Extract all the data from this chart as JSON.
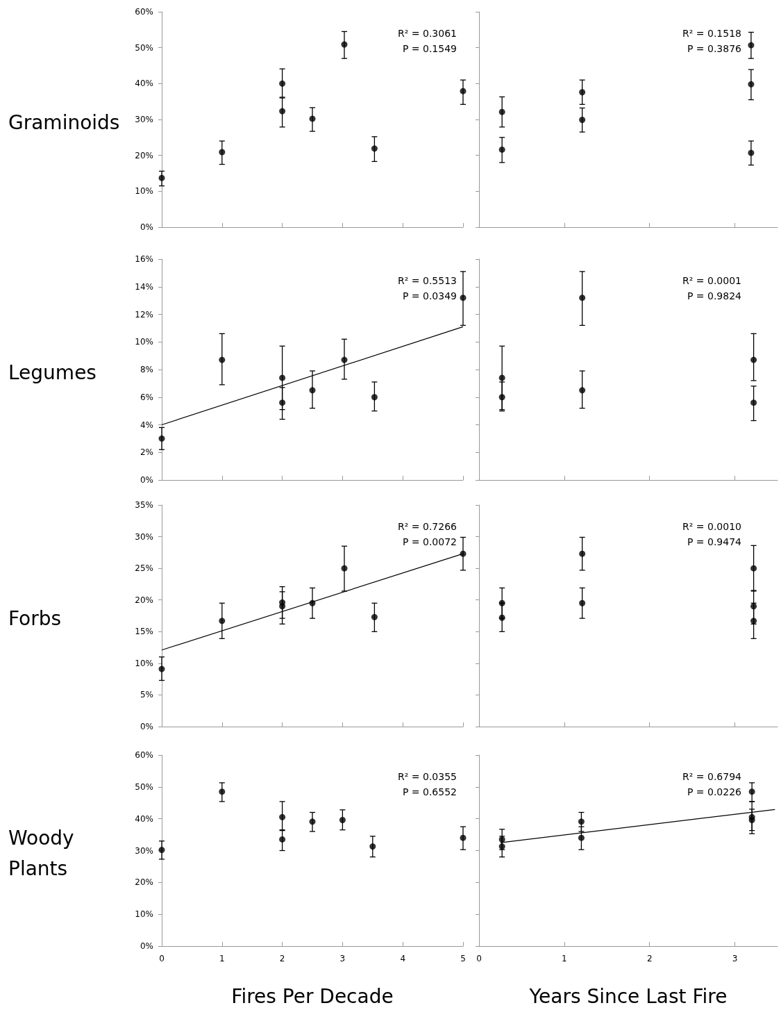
{
  "chart_data": [
    {
      "type": "scatter",
      "ylabel": "Graminoids",
      "annotations": [
        "R² = 0.3061",
        "P = 0.1549"
      ],
      "xlim": [
        0,
        5
      ],
      "xticks": [
        0,
        1,
        2,
        3,
        4,
        5
      ],
      "ylim": [
        0,
        60
      ],
      "yticks": [
        {
          "value": 0,
          "label": "0%"
        },
        {
          "value": 10,
          "label": "10%"
        },
        {
          "value": 20,
          "label": "20%"
        },
        {
          "value": 30,
          "label": "30%"
        },
        {
          "value": 40,
          "label": "40%"
        },
        {
          "value": 50,
          "label": "50%"
        },
        {
          "value": 60,
          "label": "60%"
        }
      ],
      "tick_labels": "y",
      "grid": false,
      "marker": "circle",
      "series": [
        {
          "color": "#000000",
          "x": [
            0,
            1,
            2,
            2,
            2.5,
            3.03,
            3.53,
            5
          ],
          "values": [
            13.7,
            20.9,
            40,
            32.3,
            30.2,
            50.9,
            21.9,
            37.9
          ],
          "errors": [
            [
              11.5,
              15.6
            ],
            [
              17.5,
              24
            ],
            [
              36.2,
              44.1
            ],
            [
              27.9,
              36
            ],
            [
              26.7,
              33.3
            ],
            [
              47,
              54.5
            ],
            [
              18.3,
              25.2
            ],
            [
              34.2,
              41
            ]
          ]
        }
      ]
    },
    {
      "type": "scatter",
      "annotations": [
        "R² = 0.1518",
        "P = 0.3876"
      ],
      "xlim": [
        0,
        3.5
      ],
      "xticks": [
        0,
        1,
        2,
        3
      ],
      "ylim": [
        0,
        60
      ],
      "yticks": [
        {
          "value": 0,
          "label": null
        },
        {
          "value": 10,
          "label": null
        },
        {
          "value": 20,
          "label": null
        },
        {
          "value": 30,
          "label": null
        },
        {
          "value": 40,
          "label": null
        },
        {
          "value": 50,
          "label": null
        },
        {
          "value": 60,
          "label": null
        }
      ],
      "tick_labels": false,
      "grid": false,
      "marker": "circle",
      "series": [
        {
          "color": "#000000",
          "x": [
            0.27,
            0.27,
            1.21,
            1.21,
            3.19,
            3.19,
            3.19
          ],
          "values": [
            32.1,
            21.6,
            37.6,
            29.9,
            50.7,
            39.8,
            20.7
          ],
          "errors": [
            [
              27.9,
              36.3
            ],
            [
              18,
              25
            ],
            [
              34.2,
              41
            ],
            [
              26.5,
              33.2
            ],
            [
              47,
              54.3
            ],
            [
              35.5,
              43.9
            ],
            [
              17.3,
              24
            ]
          ]
        }
      ]
    },
    {
      "type": "scatter",
      "ylabel": "Legumes",
      "annotations": [
        "R² = 0.5513",
        "P = 0.0349"
      ],
      "xlim": [
        0,
        5
      ],
      "xticks": [
        0,
        1,
        2,
        3,
        4,
        5
      ],
      "ylim": [
        0,
        16
      ],
      "yticks": [
        {
          "value": 0,
          "label": "0%"
        },
        {
          "value": 2,
          "label": "2%"
        },
        {
          "value": 4,
          "label": "4%"
        },
        {
          "value": 6,
          "label": "6%"
        },
        {
          "value": 8,
          "label": "8%"
        },
        {
          "value": 10,
          "label": "10%"
        },
        {
          "value": 12,
          "label": "12%"
        },
        {
          "value": 14,
          "label": "14%"
        },
        {
          "value": 16,
          "label": "16%"
        }
      ],
      "tick_labels": "y",
      "grid": false,
      "marker": "circle",
      "series": [
        {
          "color": "#000000",
          "x": [
            0,
            1,
            2,
            2,
            2.5,
            3.03,
            3.53,
            5
          ],
          "values": [
            3.0,
            8.7,
            7.4,
            5.6,
            6.5,
            8.7,
            6.0,
            13.2
          ],
          "errors": [
            [
              2.2,
              3.8
            ],
            [
              6.9,
              10.6
            ],
            [
              5.1,
              9.7
            ],
            [
              4.4,
              6.7
            ],
            [
              5.2,
              7.9
            ],
            [
              7.3,
              10.2
            ],
            [
              5.0,
              7.1
            ],
            [
              11.2,
              15.1
            ]
          ]
        },
        {
          "type": "line",
          "marker": "none",
          "color": "#000000",
          "x": [
            0,
            5
          ],
          "values": [
            4.0,
            11.1
          ]
        }
      ]
    },
    {
      "type": "scatter",
      "annotations": [
        "R² = 0.0001",
        "P = 0.9824"
      ],
      "xlim": [
        0,
        3.5
      ],
      "xticks": [
        0,
        1,
        2,
        3
      ],
      "ylim": [
        0,
        16
      ],
      "yticks": [
        {
          "value": 0,
          "label": null
        },
        {
          "value": 2,
          "label": null
        },
        {
          "value": 4,
          "label": null
        },
        {
          "value": 6,
          "label": null
        },
        {
          "value": 8,
          "label": null
        },
        {
          "value": 10,
          "label": null
        },
        {
          "value": 12,
          "label": null
        },
        {
          "value": 14,
          "label": null
        },
        {
          "value": 16,
          "label": null
        }
      ],
      "tick_labels": false,
      "grid": false,
      "marker": "circle",
      "series": [
        {
          "color": "#000000",
          "x": [
            0.27,
            0.27,
            1.21,
            1.21,
            3.22,
            3.22
          ],
          "values": [
            7.4,
            6.0,
            13.2,
            6.5,
            8.7,
            5.6
          ],
          "errors": [
            [
              5.1,
              9.7
            ],
            [
              5.0,
              7.1
            ],
            [
              11.2,
              15.1
            ],
            [
              5.2,
              7.9
            ],
            [
              7.2,
              10.6
            ],
            [
              4.3,
              6.8
            ]
          ]
        }
      ]
    },
    {
      "type": "scatter",
      "ylabel": "Forbs",
      "annotations": [
        "R² = 0.7266",
        "P = 0.0072"
      ],
      "xlim": [
        0,
        5
      ],
      "xticks": [
        0,
        1,
        2,
        3,
        4,
        5
      ],
      "ylim": [
        0,
        35
      ],
      "yticks": [
        {
          "value": 0,
          "label": "0%"
        },
        {
          "value": 5,
          "label": "5%"
        },
        {
          "value": 10,
          "label": "10%"
        },
        {
          "value": 15,
          "label": "15%"
        },
        {
          "value": 20,
          "label": "20%"
        },
        {
          "value": 25,
          "label": "25%"
        },
        {
          "value": 30,
          "label": "30%"
        },
        {
          "value": 35,
          "label": "35%"
        }
      ],
      "tick_labels": "y",
      "grid": false,
      "marker": "circle",
      "series": [
        {
          "color": "#000000",
          "x": [
            0,
            1,
            2,
            2,
            2.5,
            3.03,
            3.53,
            5
          ],
          "values": [
            9.1,
            16.7,
            19.6,
            19.0,
            19.5,
            25.0,
            17.3,
            27.3
          ],
          "errors": [
            [
              7.3,
              11.0
            ],
            [
              13.9,
              19.5
            ],
            [
              17.1,
              22.1
            ],
            [
              16.2,
              21.3
            ],
            [
              17.1,
              21.9
            ],
            [
              21.4,
              28.5
            ],
            [
              15.0,
              19.5
            ],
            [
              24.7,
              29.9
            ]
          ]
        },
        {
          "type": "line",
          "marker": "none",
          "color": "#000000",
          "x": [
            0,
            5
          ],
          "values": [
            12.1,
            27.3
          ]
        }
      ]
    },
    {
      "type": "scatter",
      "annotations": [
        "R² = 0.0010",
        "P = 0.9474"
      ],
      "xlim": [
        0,
        3.5
      ],
      "xticks": [
        0,
        1,
        2,
        3
      ],
      "ylim": [
        0,
        35
      ],
      "yticks": [
        {
          "value": 0,
          "label": null
        },
        {
          "value": 5,
          "label": null
        },
        {
          "value": 10,
          "label": null
        },
        {
          "value": 15,
          "label": null
        },
        {
          "value": 20,
          "label": null
        },
        {
          "value": 25,
          "label": null
        },
        {
          "value": 30,
          "label": null
        },
        {
          "value": 35,
          "label": null
        }
      ],
      "tick_labels": false,
      "grid": false,
      "marker": "circle",
      "series": [
        {
          "color": "#000000",
          "x": [
            0.27,
            0.27,
            1.21,
            1.21,
            3.22,
            3.22,
            3.22
          ],
          "values": [
            19.5,
            17.2,
            27.3,
            19.5,
            25.0,
            19.0,
            16.7
          ],
          "errors": [
            [
              17.1,
              21.9
            ],
            [
              15.0,
              19.5
            ],
            [
              24.7,
              29.9
            ],
            [
              17.1,
              21.9
            ],
            [
              21.4,
              28.6
            ],
            [
              16.2,
              21.5
            ],
            [
              13.9,
              19.5
            ]
          ]
        }
      ]
    },
    {
      "type": "scatter",
      "ylabel": "Woody Plants",
      "xlabel": "Fires Per Decade",
      "annotations": [
        "R² = 0.0355",
        "P = 0.6552"
      ],
      "xlim": [
        0,
        5
      ],
      "xticks": [
        0,
        1,
        2,
        3,
        4,
        5
      ],
      "ylim": [
        0,
        60
      ],
      "yticks": [
        {
          "value": 0,
          "label": "0%"
        },
        {
          "value": 10,
          "label": "10%"
        },
        {
          "value": 20,
          "label": "20%"
        },
        {
          "value": 30,
          "label": "30%"
        },
        {
          "value": 40,
          "label": "40%"
        },
        {
          "value": 50,
          "label": "50%"
        },
        {
          "value": 60,
          "label": "60%"
        }
      ],
      "grid": false,
      "marker": "circle",
      "series": [
        {
          "color": "#000000",
          "x": [
            0,
            1,
            2,
            2,
            2.5,
            3,
            3.5,
            5
          ],
          "values": [
            30.2,
            48.5,
            40.5,
            33.5,
            39.1,
            39.6,
            31.3,
            34.0
          ],
          "errors": [
            [
              27.3,
              33
            ],
            [
              45.4,
              51.3
            ],
            [
              36.3,
              45.4
            ],
            [
              30.0,
              36.5
            ],
            [
              36,
              42
            ],
            [
              36.5,
              42.8
            ],
            [
              28,
              34.5
            ],
            [
              30.3,
              37.5
            ]
          ]
        }
      ]
    },
    {
      "type": "scatter",
      "xlabel": "Years Since Last Fire",
      "annotations": [
        "R² = 0.6794",
        "P = 0.0226"
      ],
      "xlim": [
        0,
        3.5
      ],
      "xticks": [
        0,
        1,
        2,
        3
      ],
      "ylim": [
        0,
        60
      ],
      "yticks": [
        {
          "value": 0,
          "label": null
        },
        {
          "value": 10,
          "label": null
        },
        {
          "value": 20,
          "label": null
        },
        {
          "value": 30,
          "label": null
        },
        {
          "value": 40,
          "label": null
        },
        {
          "value": 50,
          "label": null
        },
        {
          "value": 60,
          "label": null
        }
      ],
      "tick_labels": "x",
      "grid": false,
      "marker": "circle",
      "series": [
        {
          "color": "#000000",
          "x": [
            0.27,
            0.27,
            1.2,
            1.2,
            3.2,
            3.2,
            3.2
          ],
          "values": [
            33.5,
            31.3,
            39.1,
            34.0,
            48.5,
            40.5,
            39.6
          ],
          "errors": [
            [
              30.3,
              36.7
            ],
            [
              28,
              34.5
            ],
            [
              36,
              42
            ],
            [
              30.3,
              37.5
            ],
            [
              45.4,
              51.3
            ],
            [
              36.3,
              45.4
            ],
            [
              35.3,
              43
            ]
          ]
        },
        {
          "type": "line",
          "marker": "none",
          "color": "#000000",
          "x": [
            0.25,
            3.47
          ],
          "values": [
            32.5,
            42.9
          ]
        }
      ]
    }
  ]
}
